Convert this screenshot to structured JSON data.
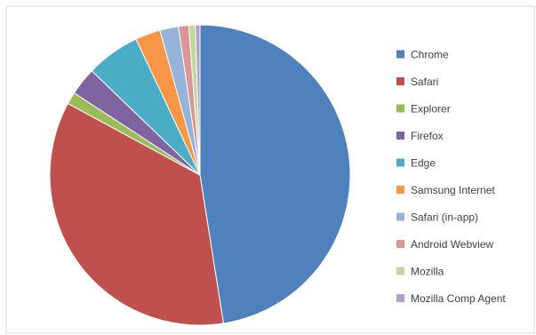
{
  "chart_data": {
    "type": "pie",
    "title": "",
    "legend_position": "right",
    "categories": [
      "Chrome",
      "Safari",
      "Explorer",
      "Firefox",
      "Edge",
      "Samsung Internet",
      "Safari (in-app)",
      "Android Webview",
      "Mozilla",
      "Mozilla Comp Agent"
    ],
    "values": [
      47.5,
      35.4,
      1.3,
      3.0,
      5.8,
      2.7,
      2.0,
      1.1,
      0.7,
      0.5
    ],
    "colors": [
      "#4F81BD",
      "#C0504D",
      "#9BBB59",
      "#8064A2",
      "#4BACC6",
      "#F79646",
      "#95B3D7",
      "#D99694",
      "#C3D69B",
      "#B2A1C7"
    ]
  }
}
